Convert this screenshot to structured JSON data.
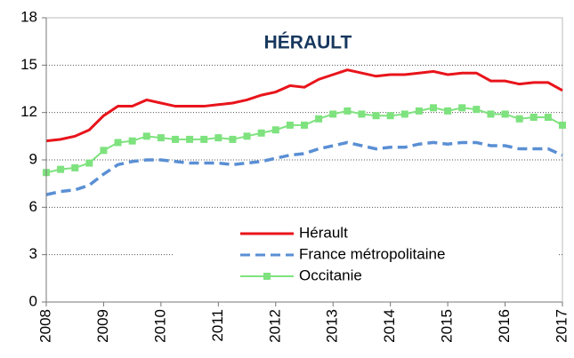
{
  "chart_data": {
    "type": "line",
    "title": "HÉRAULT",
    "x": [
      2008,
      2008.25,
      2008.5,
      2008.75,
      2009,
      2009.25,
      2009.5,
      2009.75,
      2010,
      2010.25,
      2010.5,
      2010.75,
      2011,
      2011.25,
      2011.5,
      2011.75,
      2012,
      2012.25,
      2012.5,
      2012.75,
      2013,
      2013.25,
      2013.5,
      2013.75,
      2014,
      2014.25,
      2014.5,
      2014.75,
      2015,
      2015.25,
      2015.5,
      2015.75,
      2016,
      2016.25,
      2016.5,
      2016.75,
      2017
    ],
    "series": [
      {
        "name": "Hérault",
        "color": "#e8141b",
        "style": "solid",
        "marker": "none",
        "values": [
          10.2,
          10.3,
          10.5,
          10.9,
          11.8,
          12.4,
          12.4,
          12.8,
          12.6,
          12.4,
          12.4,
          12.4,
          12.5,
          12.6,
          12.8,
          13.1,
          13.3,
          13.7,
          13.6,
          14.1,
          14.4,
          14.7,
          14.5,
          14.3,
          14.4,
          14.4,
          14.5,
          14.6,
          14.4,
          14.5,
          14.5,
          14.0,
          14.0,
          13.8,
          13.9,
          13.9,
          13.4
        ]
      },
      {
        "name": "France métropolitaine",
        "color": "#5a8fd4",
        "style": "dashed",
        "marker": "none",
        "values": [
          6.8,
          7.0,
          7.1,
          7.4,
          8.1,
          8.7,
          8.9,
          9.0,
          9.0,
          8.9,
          8.8,
          8.8,
          8.8,
          8.7,
          8.8,
          8.9,
          9.1,
          9.3,
          9.4,
          9.7,
          9.9,
          10.1,
          9.9,
          9.7,
          9.8,
          9.8,
          10.0,
          10.1,
          10.0,
          10.1,
          10.1,
          9.9,
          9.9,
          9.7,
          9.7,
          9.7,
          9.3
        ]
      },
      {
        "name": "Occitanie",
        "color": "#7ee27e",
        "style": "solid",
        "marker": "square",
        "values": [
          8.2,
          8.4,
          8.5,
          8.8,
          9.6,
          10.1,
          10.2,
          10.5,
          10.4,
          10.3,
          10.3,
          10.3,
          10.4,
          10.3,
          10.5,
          10.7,
          10.9,
          11.2,
          11.2,
          11.6,
          11.9,
          12.1,
          11.9,
          11.8,
          11.8,
          11.9,
          12.1,
          12.3,
          12.1,
          12.3,
          12.2,
          11.9,
          11.9,
          11.6,
          11.7,
          11.7,
          11.2
        ]
      }
    ],
    "xlim": [
      2008,
      2017
    ],
    "xticks": [
      2008,
      2009,
      2010,
      2011,
      2012,
      2013,
      2014,
      2015,
      2016,
      2017
    ],
    "ylim": [
      0,
      18
    ],
    "yticks": [
      0,
      3,
      6,
      9,
      12,
      15,
      18
    ],
    "grid": true,
    "legend": "lower-right"
  }
}
